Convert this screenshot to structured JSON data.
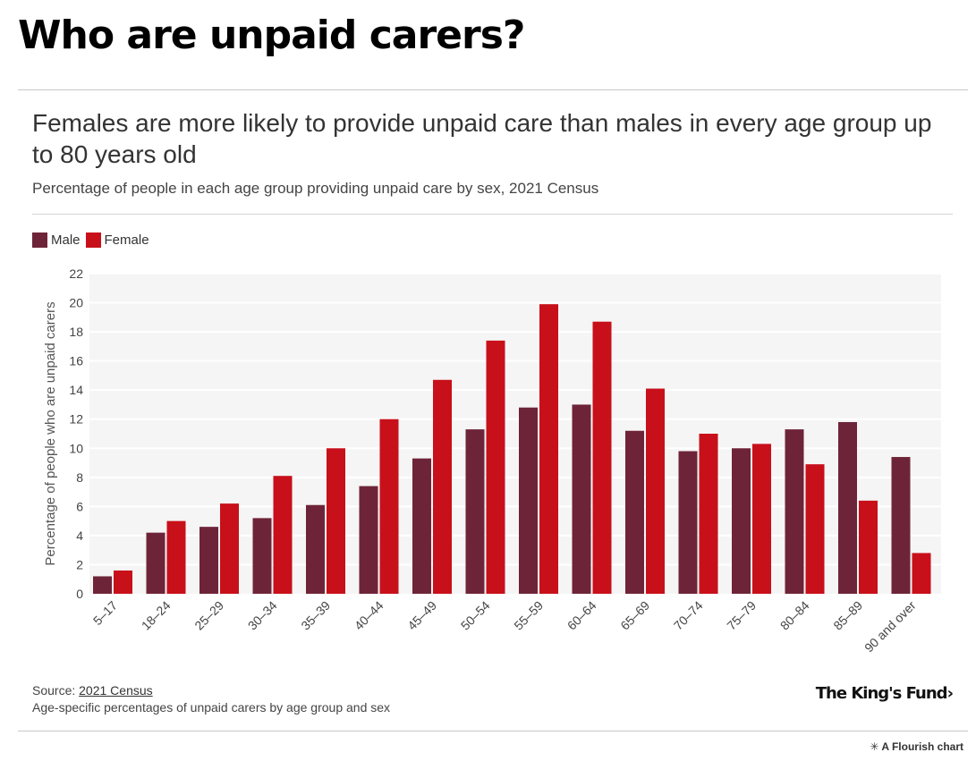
{
  "page": {
    "title": "Who are unpaid carers?",
    "headline": "Females are more likely to provide unpaid care than males in every age group up to 80 years old",
    "subtitle": "Percentage of people in each age group providing unpaid care by sex, 2021 Census"
  },
  "footer": {
    "source_prefix": "Source: ",
    "source_link": "2021 Census",
    "note": "Age-specific percentages of unpaid carers by age group and sex",
    "brand": "The King's Fund",
    "brand_arrow": "›",
    "flourish": "A Flourish chart"
  },
  "colors": {
    "male": "#6e2438",
    "female": "#c8101a",
    "plot_bg": "#f5f5f5",
    "grid": "#ffffff"
  },
  "chart_data": {
    "type": "bar",
    "title": "",
    "xlabel": "",
    "ylabel": "Percentage of people who are unpaid carers",
    "ylim": [
      0,
      22
    ],
    "yticks": [
      0,
      2,
      4,
      6,
      8,
      10,
      12,
      14,
      16,
      18,
      20,
      22
    ],
    "grid": true,
    "legend": "top-left",
    "categories": [
      "5–17",
      "18–24",
      "25–29",
      "30–34",
      "35–39",
      "40–44",
      "45–49",
      "50–54",
      "55–59",
      "60–64",
      "65–69",
      "70–74",
      "75–79",
      "80–84",
      "85–89",
      "90 and over"
    ],
    "series": [
      {
        "name": "Male",
        "color": "#6e2438",
        "values": [
          1.2,
          4.2,
          4.6,
          5.2,
          6.1,
          7.4,
          9.3,
          11.3,
          12.8,
          13.0,
          11.2,
          9.8,
          10.0,
          11.3,
          11.8,
          9.4
        ]
      },
      {
        "name": "Female",
        "color": "#c8101a",
        "values": [
          1.6,
          5.0,
          6.2,
          8.1,
          10.0,
          12.0,
          14.7,
          17.4,
          19.9,
          18.7,
          14.1,
          11.0,
          10.3,
          8.9,
          6.4,
          2.8
        ]
      }
    ]
  }
}
